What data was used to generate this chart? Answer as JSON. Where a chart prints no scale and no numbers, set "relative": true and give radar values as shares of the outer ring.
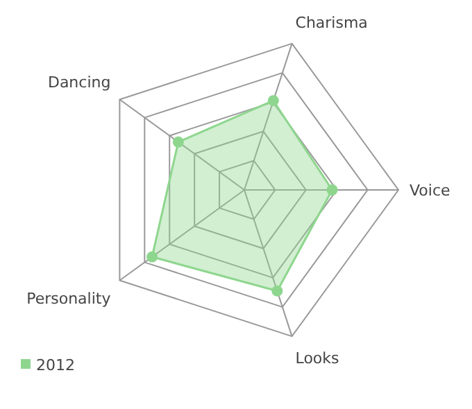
{
  "chart_data": {
    "type": "radar",
    "relative": true,
    "categories": [
      "Charisma",
      "Voice",
      "Looks",
      "Personality",
      "Dancing"
    ],
    "series": [
      {
        "name": "2012",
        "color": "#8ed68e",
        "values": [
          0.61,
          0.57,
          0.69,
          0.74,
          0.53
        ]
      }
    ],
    "legend": "bottom left",
    "marker": "circle",
    "grid": true
  }
}
